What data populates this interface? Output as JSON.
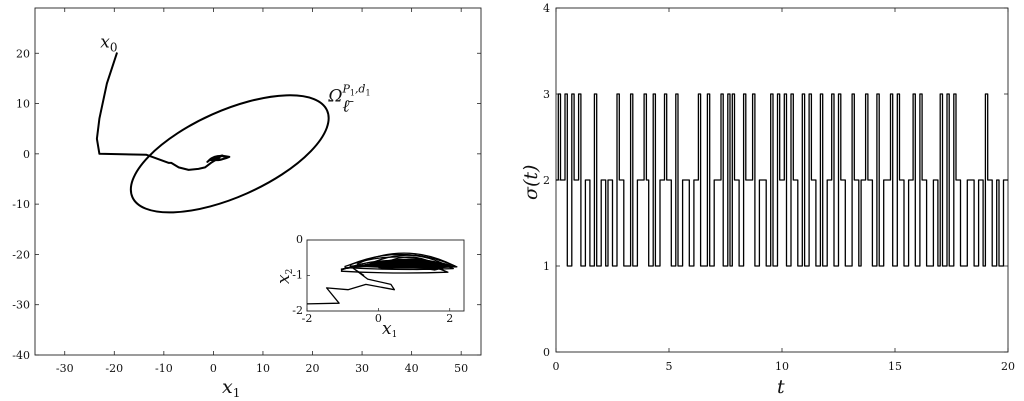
{
  "chart_data": [
    {
      "type": "line",
      "xlabel": "x1",
      "xlim": [
        -36,
        54
      ],
      "ylim": [
        -40,
        29
      ],
      "xticks": [
        -30,
        -20,
        -10,
        0,
        10,
        20,
        30,
        40,
        50
      ],
      "yticks": [
        20,
        10,
        0,
        -10,
        -20,
        -30,
        -40
      ],
      "annotations": [
        {
          "text": "x0",
          "x": -20,
          "y": 20
        },
        {
          "text": "Ω",
          "sup": "P1,d1",
          "sub": "ℓ̄",
          "x": 24,
          "y": 10
        }
      ],
      "ellipse": {
        "center": [
          3.3,
          0
        ],
        "semi_axis_a": 21.5,
        "semi_axis_b": 8.7,
        "angle_deg": 24
      },
      "trajectory": [
        [
          -19.5,
          20
        ],
        [
          -21.5,
          14
        ],
        [
          -23,
          7
        ],
        [
          -23.5,
          3
        ],
        [
          -23,
          0
        ],
        [
          -13.5,
          -0.2
        ],
        [
          -9,
          -1.8
        ],
        [
          -8.5,
          -1.8
        ],
        [
          -7,
          -2.7
        ],
        [
          -5,
          -3.2
        ],
        [
          -3,
          -3
        ],
        [
          -1.7,
          -2.7
        ],
        [
          -0.5,
          -1.8
        ],
        [
          0.3,
          -1.3
        ],
        [
          0.8,
          -1.0
        ],
        [
          1.2,
          -0.8
        ]
      ],
      "inset": {
        "xlabel": "x1",
        "ylabel": "x2",
        "xlim": [
          -2,
          2.4
        ],
        "ylim": [
          -2,
          0
        ],
        "xticks": [
          -2,
          0,
          2
        ],
        "yticks": [
          0,
          -1,
          -2
        ],
        "trajectory": [
          [
            -2,
            -1.8
          ],
          [
            -1.1,
            -1.78
          ],
          [
            -1.45,
            -1.35
          ],
          [
            -0.85,
            -1.4
          ],
          [
            -0.35,
            -1.25
          ],
          [
            0.45,
            -1.4
          ],
          [
            0.35,
            -1.25
          ],
          [
            -0.3,
            -1.1
          ],
          [
            -0.7,
            -0.8
          ],
          [
            -0.4,
            -1.0
          ]
        ],
        "loops": [
          {
            "x_start": -1.05,
            "x_end": 1.95,
            "y_base": -0.85,
            "y_peak": -0.45
          },
          {
            "x_start": -0.95,
            "x_end": 2.1,
            "y_base": -0.75,
            "y_peak": -0.35
          },
          {
            "x_start": -0.8,
            "x_end": 2.2,
            "y_base": -0.7,
            "y_peak": -0.25
          },
          {
            "x_start": -0.6,
            "x_end": 2.15,
            "y_base": -0.68,
            "y_peak": -0.2
          },
          {
            "x_start": -0.3,
            "x_end": 2.0,
            "y_base": -0.7,
            "y_peak": -0.3
          },
          {
            "x_start": 0.0,
            "x_end": 1.8,
            "y_base": -0.75,
            "y_peak": -0.35
          }
        ]
      }
    },
    {
      "type": "line",
      "xlabel": "t",
      "ylabel": "σ(t)",
      "xlim": [
        0,
        20
      ],
      "ylim": [
        0,
        4
      ],
      "xticks": [
        0,
        5,
        10,
        15,
        20
      ],
      "yticks": [
        0,
        1,
        2,
        3,
        4
      ],
      "step_signal": [
        [
          0,
          2
        ],
        [
          0.1,
          3
        ],
        [
          0.2,
          2
        ],
        [
          0.4,
          3
        ],
        [
          0.5,
          1
        ],
        [
          0.7,
          3
        ],
        [
          0.8,
          2
        ],
        [
          1.0,
          3
        ],
        [
          1.1,
          1
        ],
        [
          1.3,
          2
        ],
        [
          1.5,
          1
        ],
        [
          1.7,
          3
        ],
        [
          1.8,
          1
        ],
        [
          2.0,
          2
        ],
        [
          2.2,
          1
        ],
        [
          2.3,
          2
        ],
        [
          2.5,
          1
        ],
        [
          2.7,
          3
        ],
        [
          2.8,
          2
        ],
        [
          3.0,
          1
        ],
        [
          3.3,
          3
        ],
        [
          3.4,
          1
        ],
        [
          3.6,
          2
        ],
        [
          3.9,
          3
        ],
        [
          4.0,
          2
        ],
        [
          4.1,
          1
        ],
        [
          4.3,
          3
        ],
        [
          4.4,
          1
        ],
        [
          4.6,
          2
        ],
        [
          4.8,
          3
        ],
        [
          4.9,
          2
        ],
        [
          5.1,
          1
        ],
        [
          5.3,
          3
        ],
        [
          5.4,
          1
        ],
        [
          5.6,
          2
        ],
        [
          5.9,
          1
        ],
        [
          6.1,
          2
        ],
        [
          6.3,
          3
        ],
        [
          6.4,
          1
        ],
        [
          6.7,
          3
        ],
        [
          6.8,
          1
        ],
        [
          7.0,
          2
        ],
        [
          7.3,
          3
        ],
        [
          7.4,
          1
        ],
        [
          7.6,
          3
        ],
        [
          7.7,
          1
        ],
        [
          7.8,
          3
        ],
        [
          7.9,
          2
        ],
        [
          8.1,
          1
        ],
        [
          8.3,
          3
        ],
        [
          8.4,
          2
        ],
        [
          8.7,
          3
        ],
        [
          8.8,
          1
        ],
        [
          9.0,
          2
        ],
        [
          9.3,
          1
        ],
        [
          9.5,
          3
        ],
        [
          9.6,
          1
        ],
        [
          9.8,
          3
        ],
        [
          9.9,
          2
        ],
        [
          10.1,
          3
        ],
        [
          10.2,
          1
        ],
        [
          10.4,
          3
        ],
        [
          10.5,
          2
        ],
        [
          10.7,
          1
        ],
        [
          10.9,
          3
        ],
        [
          11.0,
          1
        ],
        [
          11.2,
          3
        ],
        [
          11.3,
          2
        ],
        [
          11.5,
          1
        ],
        [
          11.7,
          3
        ],
        [
          11.8,
          1
        ],
        [
          12.0,
          2
        ],
        [
          12.2,
          3
        ],
        [
          12.3,
          1
        ],
        [
          12.5,
          3
        ],
        [
          12.6,
          2
        ],
        [
          12.8,
          1
        ],
        [
          13.1,
          3
        ],
        [
          13.2,
          2
        ],
        [
          13.4,
          1
        ],
        [
          13.5,
          2
        ],
        [
          13.7,
          3
        ],
        [
          13.8,
          2
        ],
        [
          14.0,
          1
        ],
        [
          14.2,
          3
        ],
        [
          14.3,
          1
        ],
        [
          14.5,
          2
        ],
        [
          14.8,
          3
        ],
        [
          14.9,
          1
        ],
        [
          15.1,
          3
        ],
        [
          15.2,
          2
        ],
        [
          15.4,
          1
        ],
        [
          15.6,
          2
        ],
        [
          15.8,
          3
        ],
        [
          15.9,
          1
        ],
        [
          16.1,
          3
        ],
        [
          16.2,
          2
        ],
        [
          16.4,
          1
        ],
        [
          16.7,
          2
        ],
        [
          16.9,
          1
        ],
        [
          17.0,
          3
        ],
        [
          17.1,
          1
        ],
        [
          17.3,
          3
        ],
        [
          17.4,
          1
        ],
        [
          17.6,
          3
        ],
        [
          17.7,
          2
        ],
        [
          17.9,
          1
        ],
        [
          18.2,
          2
        ],
        [
          18.5,
          1
        ],
        [
          18.7,
          2
        ],
        [
          18.9,
          1
        ],
        [
          19.0,
          3
        ],
        [
          19.1,
          2
        ],
        [
          19.3,
          1
        ],
        [
          19.5,
          2
        ],
        [
          19.6,
          1
        ],
        [
          19.8,
          2
        ],
        [
          20.0,
          2
        ]
      ]
    }
  ]
}
